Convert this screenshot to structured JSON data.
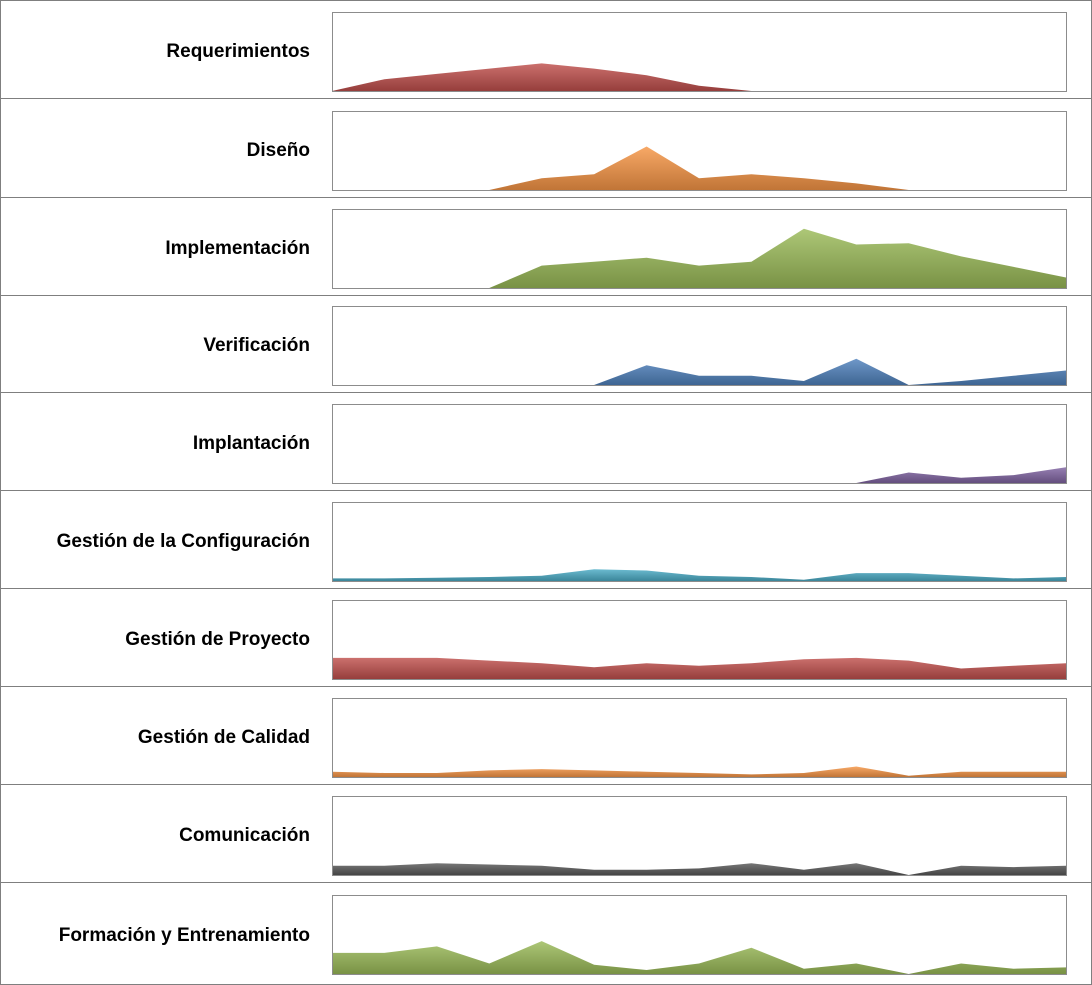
{
  "chart_data": {
    "type": "area",
    "layout": "small-multiples",
    "categories": 15,
    "grid": false,
    "legend": "none",
    "series": [
      {
        "name": "Requerimientos",
        "color": "#c0504d",
        "values": [
          0,
          9,
          13,
          17,
          21,
          17,
          12,
          4,
          0,
          0,
          0,
          0,
          0,
          0,
          0
        ]
      },
      {
        "name": "Diseño",
        "color": "#f79646",
        "values": [
          0,
          0,
          0,
          0,
          9,
          12,
          33,
          9,
          12,
          9,
          5,
          0,
          0,
          0,
          0
        ]
      },
      {
        "name": "Implementación",
        "color": "#9bbb59",
        "values": [
          0,
          0,
          0,
          0,
          17,
          20,
          23,
          17,
          20,
          45,
          33,
          34,
          24,
          16,
          8
        ]
      },
      {
        "name": "Verificación",
        "color": "#4f81bd",
        "values": [
          0,
          0,
          0,
          0,
          0,
          0,
          15,
          7,
          7,
          3,
          20,
          0,
          3,
          7,
          11
        ]
      },
      {
        "name": "Implantación",
        "color": "#8064a2",
        "values": [
          0,
          0,
          0,
          0,
          0,
          0,
          0,
          0,
          0,
          0,
          0,
          8,
          4,
          6,
          12
        ]
      },
      {
        "name": "Gestión de la Configuración",
        "color": "#4bacc6",
        "values": [
          2,
          2,
          2.5,
          3,
          4,
          9,
          8,
          4,
          3,
          1,
          6,
          6,
          4,
          2,
          3
        ]
      },
      {
        "name": "Gestión de Proyecto",
        "color": "#c0504d",
        "values": [
          16,
          16,
          16,
          14,
          12,
          9,
          12,
          10,
          12,
          15,
          16,
          14,
          8,
          10,
          12
        ]
      },
      {
        "name": "Gestión de Calidad",
        "color": "#f79646",
        "values": [
          4,
          3,
          3,
          5,
          6,
          5,
          4,
          3,
          2,
          3,
          8,
          1,
          4,
          4,
          4
        ]
      },
      {
        "name": "Comunicación",
        "color": "#595959",
        "values": [
          7,
          7,
          9,
          8,
          7,
          4,
          4,
          5,
          9,
          4,
          9,
          0,
          7,
          6,
          7
        ]
      },
      {
        "name": "Formación y Entrenamiento",
        "color": "#9bbb59",
        "values": [
          16,
          16,
          21,
          8,
          25,
          7,
          3,
          8,
          20,
          4,
          8,
          0,
          8,
          4,
          5
        ]
      }
    ],
    "ylim": [
      0,
      60
    ]
  }
}
